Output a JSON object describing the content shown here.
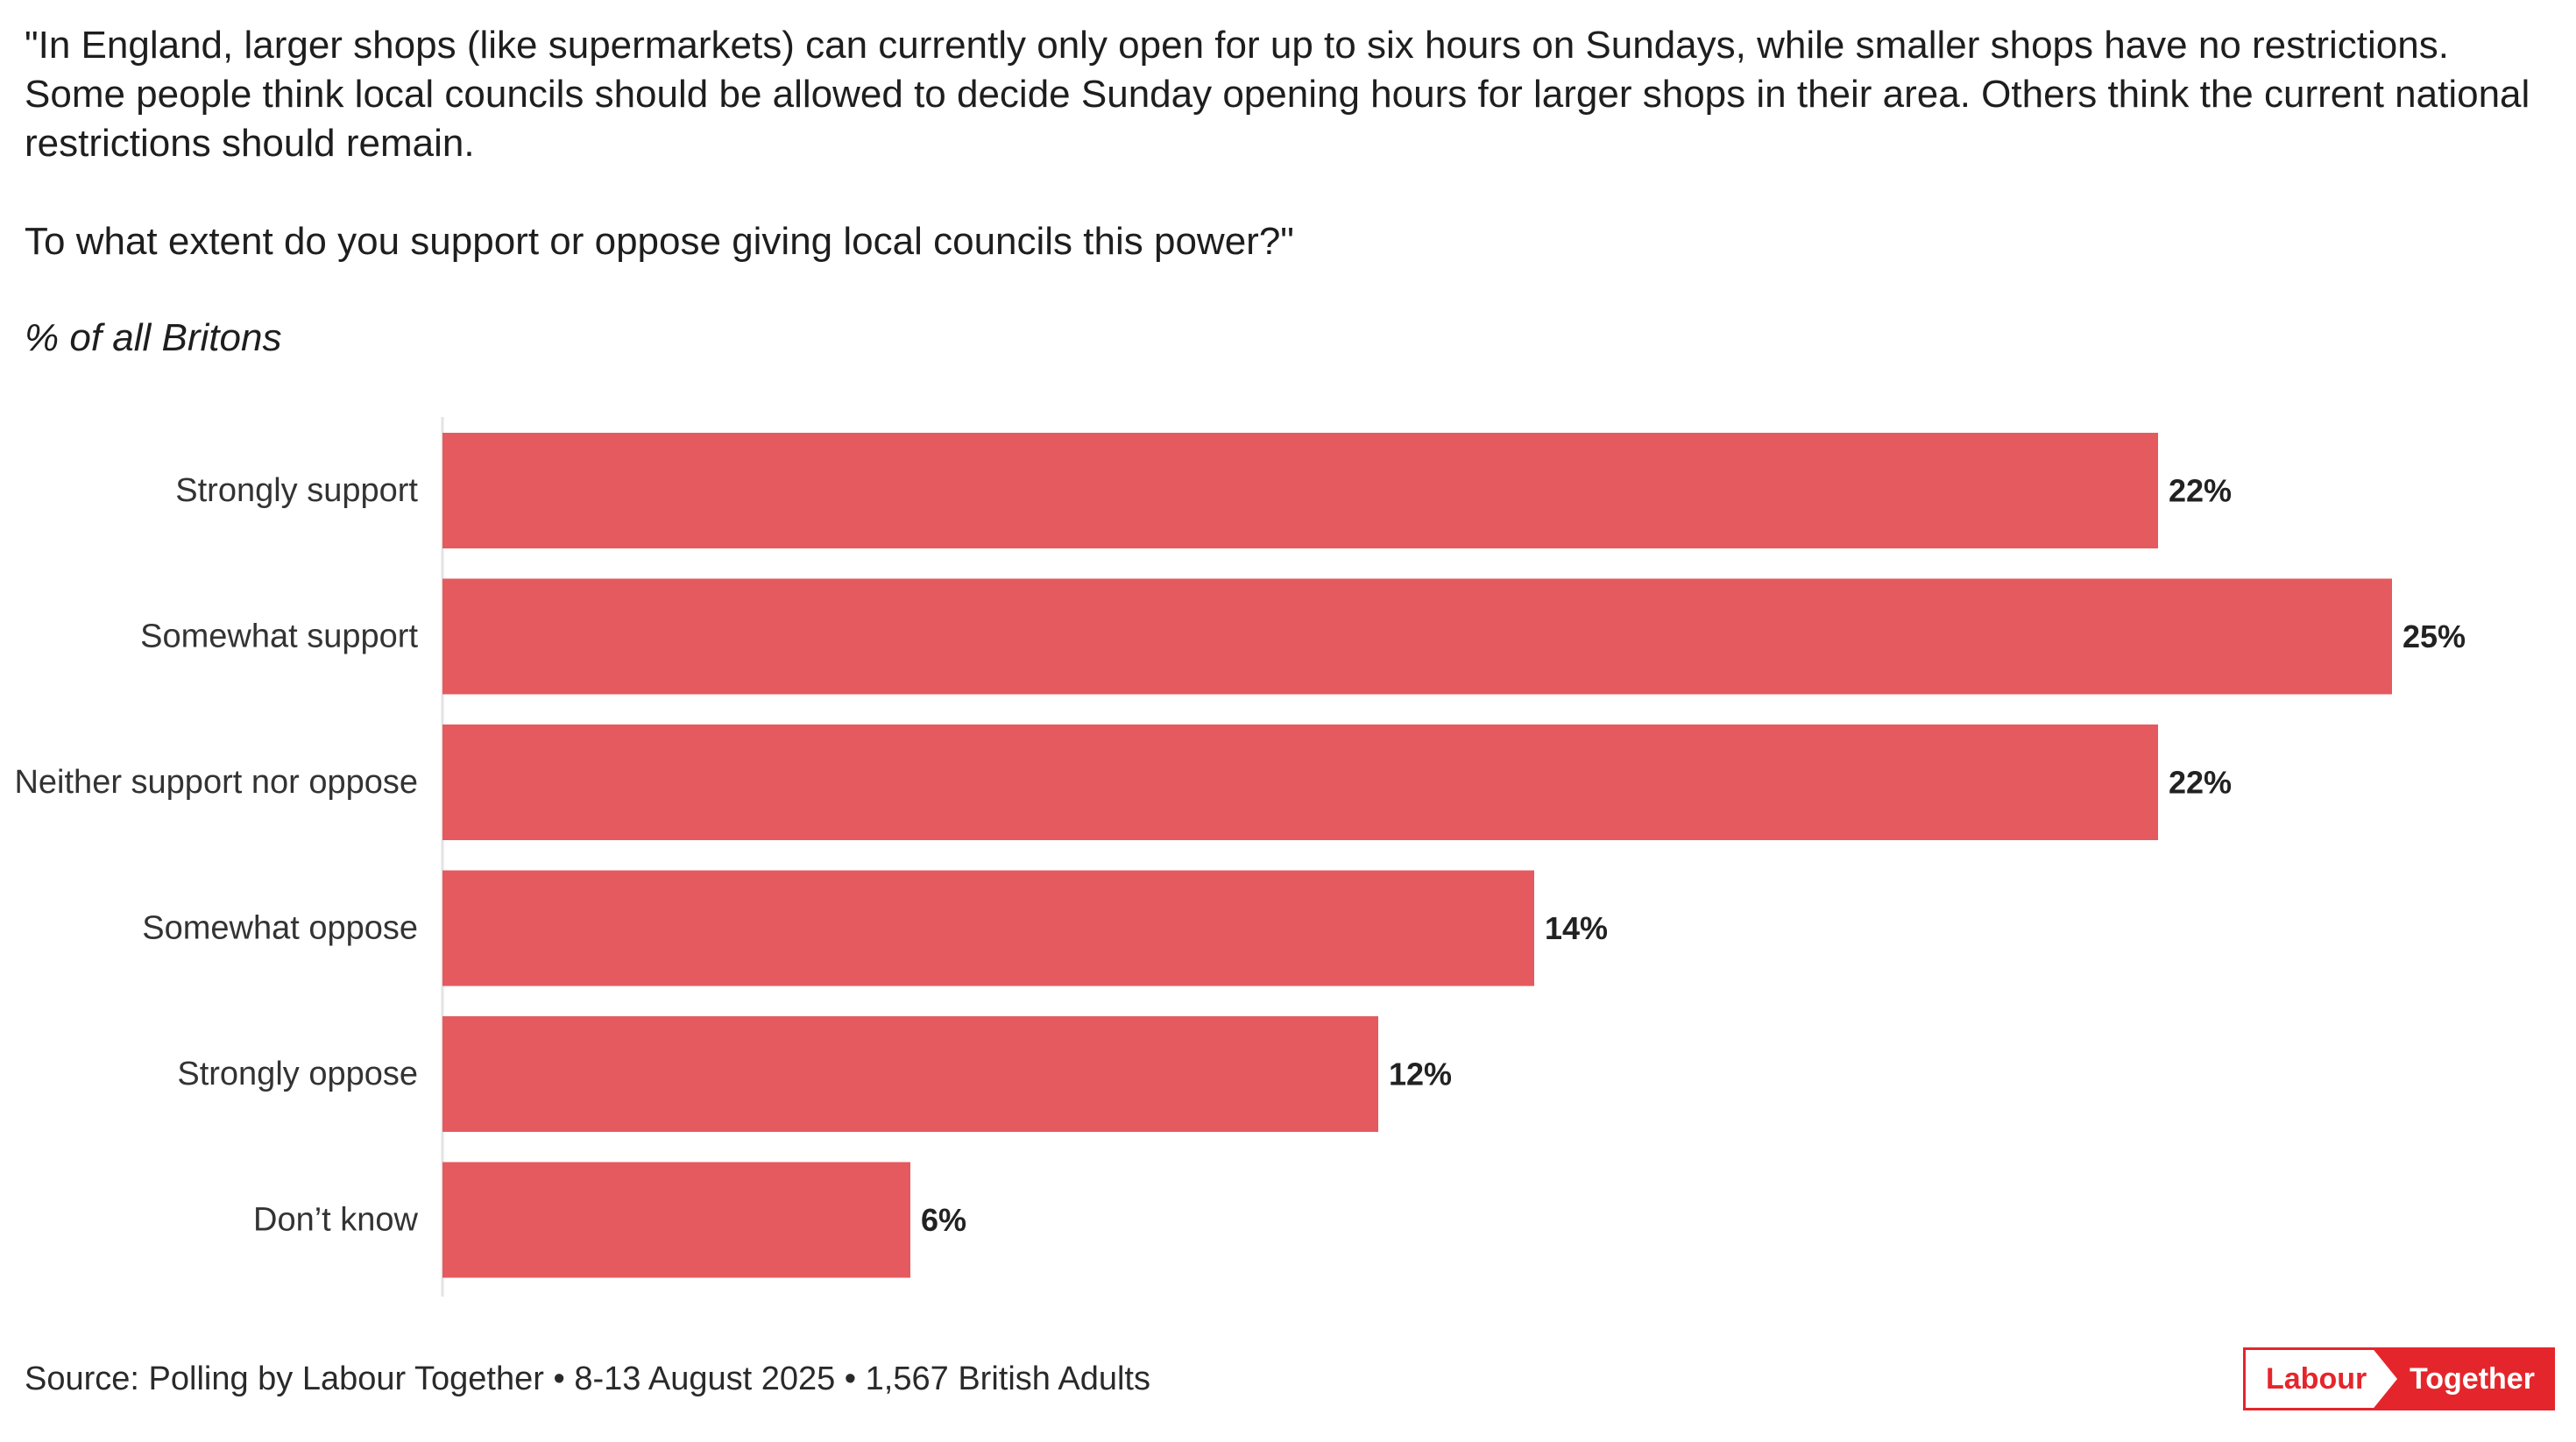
{
  "question": {
    "line1": "\"In England, larger shops (like supermarkets) can currently only open for up to six hours on Sundays, while smaller shops have no restrictions. Some people think local councils should be allowed to decide Sunday opening hours for larger shops in their area. Others think the current national restrictions should remain.",
    "line2": "To what extent do you support or oppose giving local councils this power?\""
  },
  "subtitle": "% of all Britons",
  "source": "Source: Polling by Labour Together • 8-13 August 2025 • 1,567 British Adults",
  "logo": {
    "left_text": "Labour",
    "right_text": "Together"
  },
  "colors": {
    "bar": "#e45a5e",
    "brand_red": "#e4262c",
    "axis": "#e3e3e3"
  },
  "chart_data": {
    "type": "bar",
    "orientation": "horizontal",
    "categories": [
      "Strongly support",
      "Somewhat support",
      "Neither support nor oppose",
      "Somewhat oppose",
      "Strongly oppose",
      "Don’t know"
    ],
    "values": [
      22,
      25,
      22,
      14,
      12,
      6
    ],
    "value_suffix": "%",
    "title": "% of all Britons",
    "xlabel": "",
    "ylabel": "",
    "xlim": [
      0,
      25
    ]
  }
}
